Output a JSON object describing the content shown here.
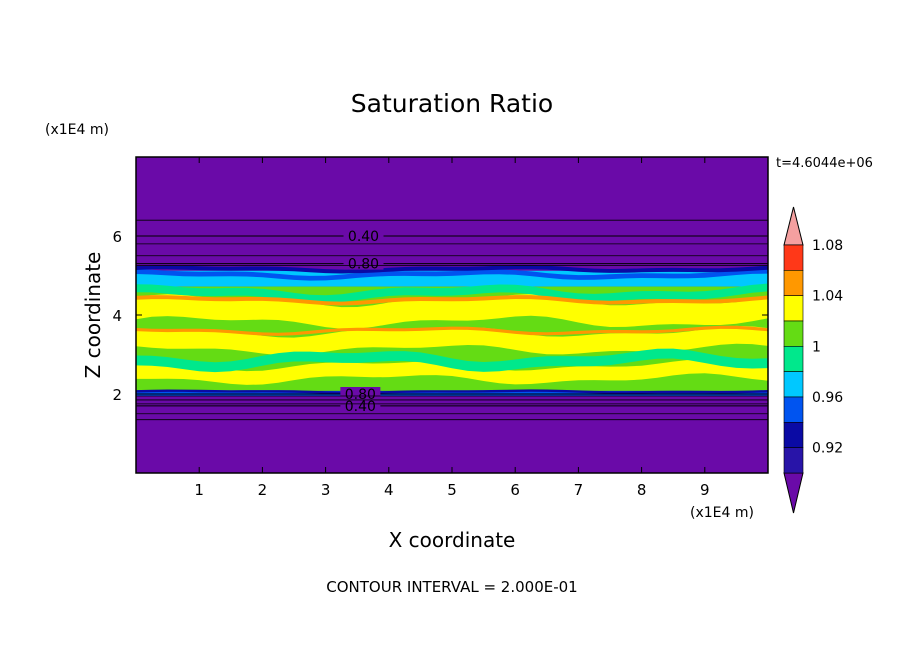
{
  "chart_data": {
    "type": "heatmap",
    "title": "Saturation Ratio",
    "xlabel": "X coordinate",
    "ylabel": "Z coordinate",
    "x_unit_label": "(x1E4 m)",
    "y_unit_label": "(x1E4 m)",
    "time_label": "t=4.6044e+06",
    "footer": "CONTOUR INTERVAL = 2.000E-01",
    "xlim": [
      0,
      10
    ],
    "ylim": [
      0,
      8
    ],
    "x_ticks": [
      1,
      2,
      3,
      4,
      5,
      6,
      7,
      8,
      9
    ],
    "y_ticks": [
      2,
      4,
      6
    ],
    "colorbar": {
      "levels": [
        0.92,
        0.94,
        0.96,
        0.98,
        1.0,
        1.02,
        1.04,
        1.06,
        1.08,
        1.1
      ],
      "labels": [
        "0.92",
        "0.96",
        "1",
        "1.04",
        "1.08"
      ],
      "colors": [
        "#6a0aa8",
        "#2814a8",
        "#0a0aa4",
        "#0054f0",
        "#00c8ff",
        "#00e88c",
        "#64dc14",
        "#ffff00",
        "#ff9800",
        "#ff3818",
        "#f5a0a0"
      ],
      "below_color": "#6a0aa8",
      "above_color": "#f5a0a0"
    },
    "contour_lines": [
      {
        "value": "0.40",
        "z": 6.0,
        "x_label": 3.6
      },
      {
        "value": "0.80",
        "z": 5.3,
        "x_label": 3.6
      },
      {
        "value": "0.80",
        "z": 2.0,
        "x_label": 3.55
      },
      {
        "value": "0.40",
        "z": 1.7,
        "x_label": 3.55
      }
    ],
    "regions": [
      {
        "z_range": [
          0,
          1.9
        ],
        "field": "< 0.92"
      },
      {
        "z_range": [
          1.9,
          2.05
        ],
        "field": "0.92 - 0.98"
      },
      {
        "z_range": [
          2.05,
          4.9
        ],
        "field": "0.98 - 1.08"
      },
      {
        "z_range": [
          4.9,
          5.2
        ],
        "field": "0.92 - 0.98"
      },
      {
        "z_range": [
          5.2,
          8
        ],
        "field": "< 0.92"
      }
    ]
  }
}
